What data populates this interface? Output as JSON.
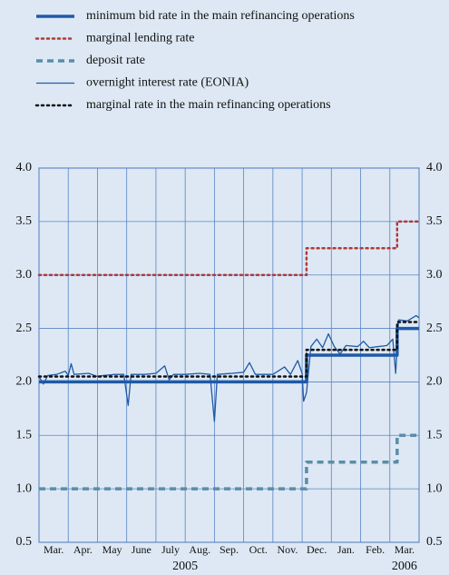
{
  "chart_data": {
    "type": "line",
    "xlim": [
      0,
      13
    ],
    "xgrid": [
      0,
      1,
      2,
      3,
      4,
      5,
      6,
      7,
      8,
      9,
      10,
      11,
      12,
      13
    ],
    "xticks": [
      {
        "value": 0.5,
        "label": "Mar."
      },
      {
        "value": 1.5,
        "label": "Apr."
      },
      {
        "value": 2.5,
        "label": "May"
      },
      {
        "value": 3.5,
        "label": "June"
      },
      {
        "value": 4.5,
        "label": "July"
      },
      {
        "value": 5.5,
        "label": "Aug."
      },
      {
        "value": 6.5,
        "label": "Sep."
      },
      {
        "value": 7.5,
        "label": "Oct."
      },
      {
        "value": 8.5,
        "label": "Nov."
      },
      {
        "value": 9.5,
        "label": "Dec."
      },
      {
        "value": 10.5,
        "label": "Jan."
      },
      {
        "value": 11.5,
        "label": "Feb."
      },
      {
        "value": 12.5,
        "label": "Mar."
      }
    ],
    "years": [
      {
        "value": 5,
        "label": "2005"
      },
      {
        "value": 12.5,
        "label": "2006"
      }
    ],
    "ylim": [
      0.5,
      4.0
    ],
    "yticks": [
      {
        "value": 0.5,
        "label": "0.5"
      },
      {
        "value": 1.0,
        "label": "1.0"
      },
      {
        "value": 1.5,
        "label": "1.5"
      },
      {
        "value": 2.0,
        "label": "2.0"
      },
      {
        "value": 2.5,
        "label": "2.5"
      },
      {
        "value": 3.0,
        "label": "3.0"
      },
      {
        "value": 3.5,
        "label": "3.5"
      },
      {
        "value": 4.0,
        "label": "4.0"
      }
    ],
    "grid": true,
    "series": [
      {
        "name": "minimum bid rate in the main refinancing operations",
        "color": "#1f5aa6",
        "style": "solid",
        "width": 3.5,
        "x": [
          0,
          9.15,
          9.15,
          12.25,
          12.25,
          13
        ],
        "values": [
          2.0,
          2.0,
          2.25,
          2.25,
          2.5,
          2.5
        ]
      },
      {
        "name": "marginal lending rate",
        "color": "#b03a3a",
        "style": "dotted",
        "width": 2.5,
        "x": [
          0,
          9.15,
          9.15,
          12.25,
          12.25,
          13
        ],
        "values": [
          3.0,
          3.0,
          3.25,
          3.25,
          3.5,
          3.5
        ]
      },
      {
        "name": "deposit rate",
        "color": "#5a8ea8",
        "style": "dashed",
        "width": 3.5,
        "x": [
          0,
          9.15,
          9.15,
          12.25,
          12.25,
          13
        ],
        "values": [
          1.0,
          1.0,
          1.25,
          1.25,
          1.5,
          1.5
        ]
      },
      {
        "name": "overnight interest rate (EONIA)",
        "color": "#1f5aa6",
        "style": "solid",
        "width": 1.3,
        "x": [
          0,
          0.15,
          0.3,
          0.6,
          0.9,
          1.0,
          1.1,
          1.2,
          1.7,
          2.0,
          2.2,
          2.6,
          2.9,
          3.05,
          3.15,
          3.6,
          4.0,
          4.3,
          4.45,
          4.6,
          5.0,
          5.5,
          5.85,
          6.0,
          6.1,
          6.6,
          7.0,
          7.2,
          7.4,
          8.0,
          8.4,
          8.6,
          8.85,
          9.0,
          9.05,
          9.15,
          9.3,
          9.5,
          9.7,
          9.9,
          10.1,
          10.3,
          10.5,
          10.9,
          11.1,
          11.3,
          11.6,
          11.9,
          12.1,
          12.2,
          12.3,
          12.6,
          12.9,
          13
        ],
        "values": [
          2.05,
          1.98,
          2.06,
          2.07,
          2.1,
          2.06,
          2.17,
          2.07,
          2.08,
          2.05,
          2.06,
          2.07,
          2.07,
          1.78,
          2.07,
          2.07,
          2.08,
          2.15,
          2.02,
          2.07,
          2.07,
          2.08,
          2.07,
          1.63,
          2.07,
          2.08,
          2.09,
          2.18,
          2.07,
          2.07,
          2.14,
          2.07,
          2.2,
          2.08,
          1.82,
          1.9,
          2.33,
          2.4,
          2.32,
          2.45,
          2.33,
          2.26,
          2.34,
          2.33,
          2.38,
          2.32,
          2.33,
          2.34,
          2.4,
          2.08,
          2.58,
          2.57,
          2.62,
          2.6
        ]
      },
      {
        "name": "marginal rate in the main refinancing operations",
        "color": "#111111",
        "style": "dotted",
        "width": 2.5,
        "x": [
          0,
          9.15,
          9.15,
          12.25,
          12.25,
          13
        ],
        "values": [
          2.05,
          2.05,
          2.3,
          2.3,
          2.56,
          2.56
        ]
      }
    ]
  }
}
